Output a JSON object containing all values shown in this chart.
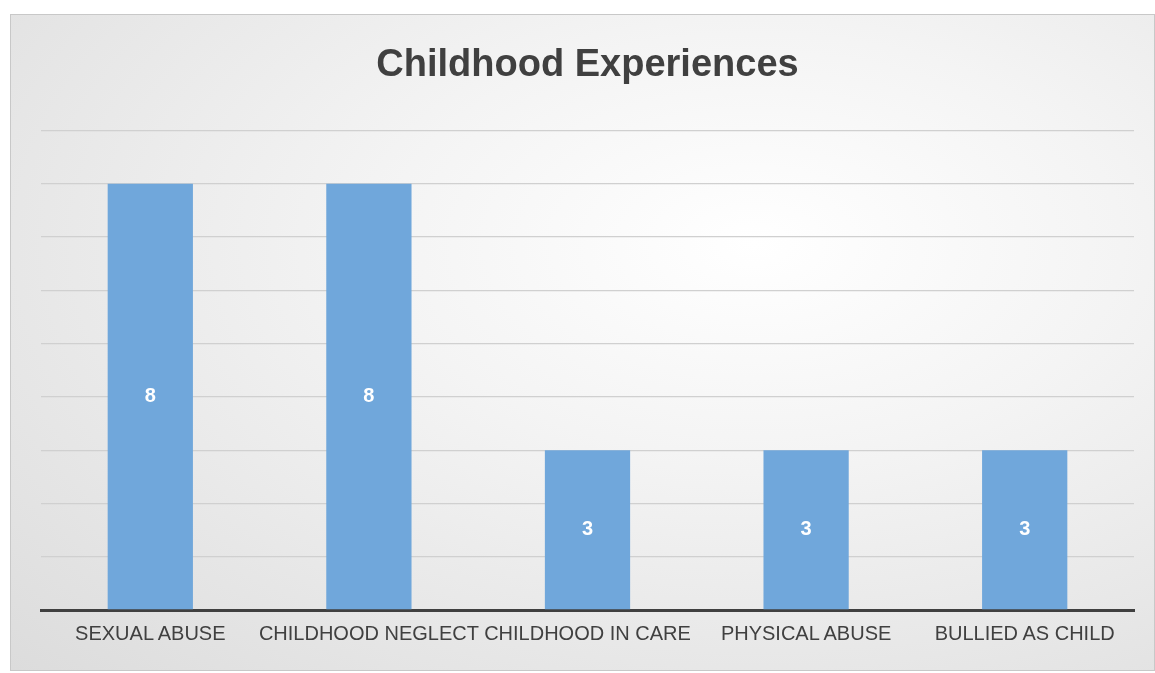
{
  "chart_data": {
    "type": "bar",
    "title": "Childhood Experiences",
    "categories": [
      "SEXUAL ABUSE",
      "CHILDHOOD NEGLECT",
      "CHILDHOOD IN CARE",
      "PHYSICAL ABUSE",
      "BULLIED AS CHILD"
    ],
    "values": [
      8,
      8,
      3,
      3,
      3
    ],
    "color": "#70a7db",
    "ylim": [
      0,
      9
    ],
    "yticks": [
      {
        "value": 0,
        "label": null
      },
      {
        "value": 1,
        "label": null
      },
      {
        "value": 2,
        "label": null
      },
      {
        "value": 3,
        "label": null
      },
      {
        "value": 4,
        "label": null
      },
      {
        "value": 5,
        "label": null
      },
      {
        "value": 6,
        "label": null
      },
      {
        "value": 7,
        "label": null
      },
      {
        "value": 8,
        "label": null
      },
      {
        "value": 9,
        "label": null
      }
    ],
    "tick_labels": "x",
    "grid": "y",
    "data_labels": true,
    "legend": false
  }
}
